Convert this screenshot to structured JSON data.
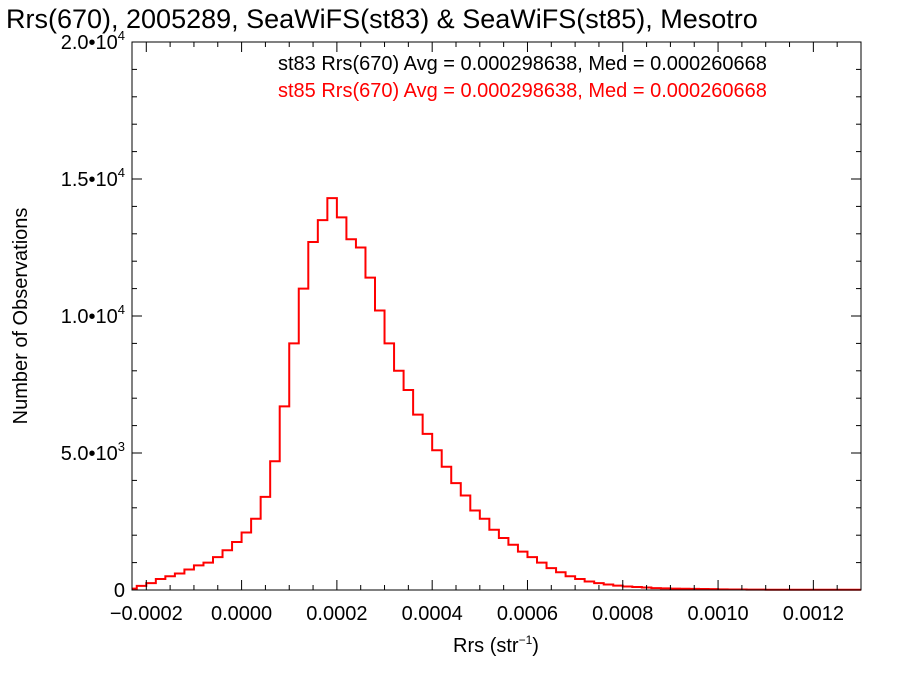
{
  "chart_data": {
    "type": "line",
    "title": "Rrs(670), 2005289, SeaWiFS(st83) & SeaWiFS(st85), Mesotro",
    "xlabel_main": "Rrs (str",
    "xlabel_sup": "−1",
    "xlabel_close": ")",
    "ylabel": "Number of Observations",
    "xlim": [
      -0.00023,
      0.0013
    ],
    "ylim": [
      0,
      20000
    ],
    "x_ticks": [
      -0.0002,
      0.0,
      0.0002,
      0.0004,
      0.0006,
      0.0008,
      0.001,
      0.0012
    ],
    "x_tick_labels": [
      "−0.0002",
      "0.0000",
      "0.0002",
      "0.0004",
      "0.0006",
      "0.0008",
      "0.0010",
      "0.0012"
    ],
    "y_ticks": [
      {
        "value": 0,
        "mantissa": "0",
        "exp": ""
      },
      {
        "value": 5000,
        "mantissa": "5.0•10",
        "exp": "3"
      },
      {
        "value": 10000,
        "mantissa": "1.0•10",
        "exp": "4"
      },
      {
        "value": 15000,
        "mantissa": "1.5•10",
        "exp": "4"
      },
      {
        "value": 20000,
        "mantissa": "2.0•10",
        "exp": "4"
      }
    ],
    "annotations": [
      {
        "text": "st83 Rrs(670) Avg = 0.000298638, Med = 0.000260668",
        "color": "#000000"
      },
      {
        "text": "st85 Rrs(670) Avg = 0.000298638, Med = 0.000260668",
        "color": "#ff0000"
      }
    ],
    "series": [
      {
        "name": "st85",
        "color": "#ff0000",
        "x": [
          -0.00023,
          -0.00021,
          -0.00019,
          -0.00017,
          -0.00015,
          -0.00013,
          -0.00011,
          -9e-05,
          -7e-05,
          -5e-05,
          -3e-05,
          -1e-05,
          1e-05,
          3e-05,
          5e-05,
          7e-05,
          9e-05,
          0.00011,
          0.00013,
          0.00015,
          0.00017,
          0.00019,
          0.00021,
          0.00023,
          0.00025,
          0.00027,
          0.00029,
          0.00031,
          0.00033,
          0.00035,
          0.00037,
          0.00039,
          0.00041,
          0.00043,
          0.00045,
          0.00047,
          0.00049,
          0.00051,
          0.00053,
          0.00055,
          0.00057,
          0.00059,
          0.00061,
          0.00063,
          0.00065,
          0.00067,
          0.00069,
          0.00071,
          0.00073,
          0.00075,
          0.00077,
          0.00079,
          0.00081,
          0.00083,
          0.00085,
          0.00087,
          0.00089,
          0.00091,
          0.00093,
          0.00095,
          0.00097,
          0.00099,
          0.00101,
          0.00103,
          0.00105,
          0.00107,
          0.00109,
          0.00111,
          0.00113,
          0.00115,
          0.00117,
          0.00119,
          0.00121,
          0.00123,
          0.00125,
          0.00127,
          0.00129
        ],
        "y": [
          50,
          150,
          250,
          400,
          500,
          600,
          750,
          900,
          1000,
          1200,
          1450,
          1750,
          2100,
          2600,
          3400,
          4700,
          6700,
          9000,
          11000,
          12700,
          13500,
          14300,
          13600,
          12800,
          12500,
          11400,
          10200,
          9000,
          8000,
          7300,
          6400,
          5700,
          5100,
          4500,
          3900,
          3450,
          2900,
          2600,
          2200,
          1900,
          1650,
          1400,
          1200,
          1000,
          800,
          650,
          500,
          400,
          310,
          250,
          200,
          160,
          130,
          110,
          90,
          70,
          60,
          50,
          45,
          40,
          35,
          30,
          25,
          20,
          20,
          15,
          15,
          10,
          10,
          10,
          10,
          10,
          10,
          10,
          10,
          10,
          10
        ]
      }
    ]
  }
}
